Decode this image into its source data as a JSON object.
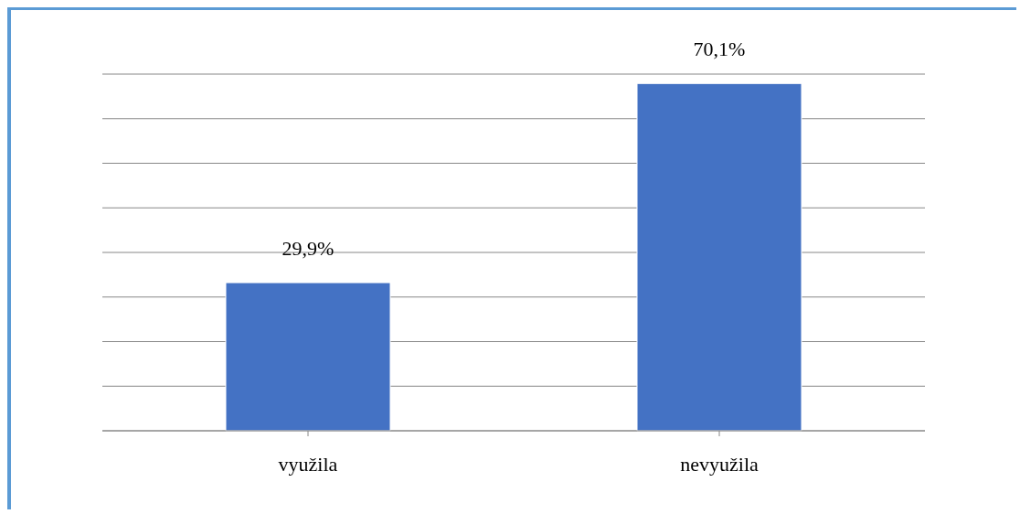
{
  "chart_data": {
    "type": "bar",
    "categories": [
      "využila",
      "nevyužila"
    ],
    "values": [
      29.9,
      70.1
    ],
    "value_labels": [
      "29,9%",
      "70,1%"
    ],
    "color": "#4472c4",
    "grid": "y",
    "tick_labels": "x"
  }
}
